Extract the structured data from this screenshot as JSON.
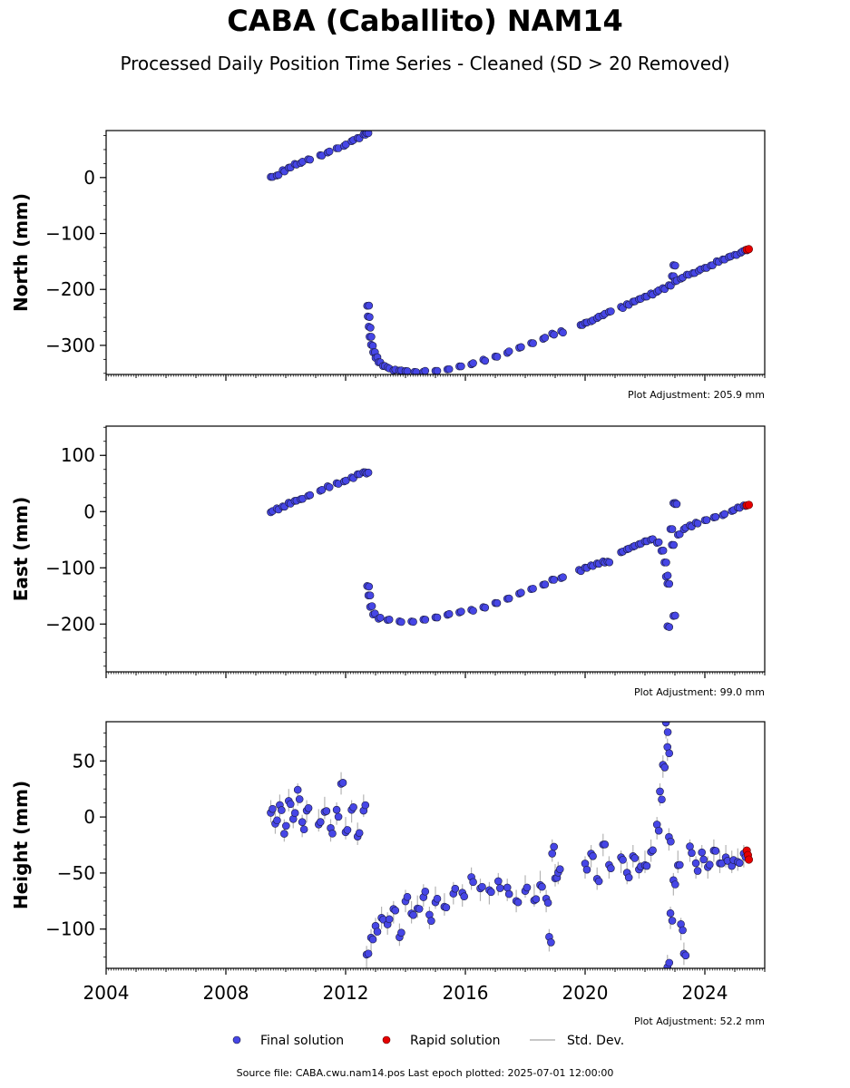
{
  "title": "CABA (Caballito) NAM14",
  "subtitle": "Processed Daily Position Time Series - Cleaned (SD > 20 Removed)",
  "footer": "Source file: CABA.cwu.nam14.pos  Last epoch plotted: 2025-07-01 12:00:00",
  "legend": {
    "final": "Final solution",
    "rapid": "Rapid solution",
    "sd": "Std. Dev."
  },
  "colors": {
    "final": "#4646e6",
    "rapid": "#e60000",
    "sd": "#b4b4b4",
    "edge": "#1a1a3a"
  },
  "chart_data": [
    {
      "type": "scatter",
      "ylabel": "North (mm)",
      "adjustment": "Plot Adjustment: 205.9 mm",
      "xlim": [
        2004,
        2026
      ],
      "ylim": [
        -352,
        84
      ],
      "yticks": [
        0,
        -100,
        -200,
        -300
      ],
      "final_series": [
        [
          2009.5,
          0
        ],
        [
          2009.7,
          5
        ],
        [
          2009.9,
          12
        ],
        [
          2010.1,
          18
        ],
        [
          2010.3,
          24
        ],
        [
          2010.5,
          27
        ],
        [
          2010.75,
          33
        ],
        [
          2011.15,
          40
        ],
        [
          2011.4,
          46
        ],
        [
          2011.7,
          53
        ],
        [
          2011.95,
          58
        ],
        [
          2012.2,
          66
        ],
        [
          2012.4,
          71
        ],
        [
          2012.6,
          77
        ],
        [
          2012.7,
          79
        ],
        [
          2012.72,
          -228
        ],
        [
          2012.74,
          -248
        ],
        [
          2012.77,
          -268
        ],
        [
          2012.8,
          -285
        ],
        [
          2012.85,
          -300
        ],
        [
          2012.92,
          -312
        ],
        [
          2013.0,
          -322
        ],
        [
          2013.1,
          -330
        ],
        [
          2013.25,
          -336
        ],
        [
          2013.4,
          -340
        ],
        [
          2013.6,
          -344
        ],
        [
          2013.8,
          -346
        ],
        [
          2014.0,
          -347
        ],
        [
          2014.3,
          -348
        ],
        [
          2014.6,
          -347
        ],
        [
          2015.0,
          -345
        ],
        [
          2015.4,
          -342
        ],
        [
          2015.8,
          -338
        ],
        [
          2016.2,
          -333
        ],
        [
          2016.6,
          -327
        ],
        [
          2017.0,
          -320
        ],
        [
          2017.4,
          -312
        ],
        [
          2017.8,
          -304
        ],
        [
          2018.2,
          -296
        ],
        [
          2018.6,
          -287
        ],
        [
          2018.9,
          -280
        ],
        [
          2019.2,
          -276
        ],
        [
          2019.85,
          -264
        ],
        [
          2020.0,
          -260
        ],
        [
          2020.2,
          -256
        ],
        [
          2020.4,
          -250
        ],
        [
          2020.6,
          -245
        ],
        [
          2020.8,
          -240
        ],
        [
          2021.2,
          -232
        ],
        [
          2021.4,
          -226
        ],
        [
          2021.6,
          -221
        ],
        [
          2021.8,
          -216
        ],
        [
          2022.0,
          -212
        ],
        [
          2022.2,
          -208
        ],
        [
          2022.4,
          -203
        ],
        [
          2022.6,
          -198
        ],
        [
          2022.8,
          -192
        ],
        [
          2022.9,
          -176
        ],
        [
          2022.95,
          -158
        ],
        [
          2023.0,
          -185
        ],
        [
          2023.2,
          -180
        ],
        [
          2023.4,
          -174
        ],
        [
          2023.6,
          -170
        ],
        [
          2023.8,
          -165
        ],
        [
          2024.0,
          -160
        ],
        [
          2024.2,
          -156
        ],
        [
          2024.4,
          -151
        ],
        [
          2024.6,
          -146
        ],
        [
          2024.8,
          -142
        ],
        [
          2025.0,
          -138
        ],
        [
          2025.2,
          -133
        ],
        [
          2025.35,
          -130
        ]
      ],
      "rapid_series": [
        [
          2025.4,
          -129
        ],
        [
          2025.47,
          -128
        ]
      ]
    },
    {
      "type": "scatter",
      "ylabel": "East (mm)",
      "adjustment": "Plot Adjustment: 99.0 mm",
      "xlim": [
        2004,
        2026
      ],
      "ylim": [
        -285,
        152
      ],
      "yticks": [
        100,
        0,
        -100,
        -200
      ],
      "final_series": [
        [
          2009.5,
          0
        ],
        [
          2009.7,
          5
        ],
        [
          2009.9,
          10
        ],
        [
          2010.1,
          15
        ],
        [
          2010.3,
          19
        ],
        [
          2010.5,
          23
        ],
        [
          2010.75,
          29
        ],
        [
          2011.15,
          38
        ],
        [
          2011.4,
          44
        ],
        [
          2011.7,
          50
        ],
        [
          2011.95,
          55
        ],
        [
          2012.2,
          61
        ],
        [
          2012.4,
          66
        ],
        [
          2012.6,
          70
        ],
        [
          2012.7,
          68
        ],
        [
          2012.72,
          -132
        ],
        [
          2012.76,
          -150
        ],
        [
          2012.82,
          -168
        ],
        [
          2012.92,
          -182
        ],
        [
          2013.1,
          -190
        ],
        [
          2013.4,
          -193
        ],
        [
          2013.8,
          -195
        ],
        [
          2014.2,
          -195
        ],
        [
          2014.6,
          -192
        ],
        [
          2015.0,
          -188
        ],
        [
          2015.4,
          -183
        ],
        [
          2015.8,
          -178
        ],
        [
          2016.2,
          -175
        ],
        [
          2016.6,
          -170
        ],
        [
          2017.0,
          -163
        ],
        [
          2017.4,
          -154
        ],
        [
          2017.8,
          -145
        ],
        [
          2018.2,
          -138
        ],
        [
          2018.6,
          -130
        ],
        [
          2018.9,
          -122
        ],
        [
          2019.2,
          -117
        ],
        [
          2019.8,
          -105
        ],
        [
          2020.0,
          -100
        ],
        [
          2020.2,
          -96
        ],
        [
          2020.4,
          -93
        ],
        [
          2020.6,
          -90
        ],
        [
          2020.75,
          -89
        ],
        [
          2021.2,
          -72
        ],
        [
          2021.4,
          -66
        ],
        [
          2021.6,
          -61
        ],
        [
          2021.8,
          -57
        ],
        [
          2022.0,
          -53
        ],
        [
          2022.2,
          -50
        ],
        [
          2022.4,
          -55
        ],
        [
          2022.55,
          -70
        ],
        [
          2022.65,
          -90
        ],
        [
          2022.7,
          -115
        ],
        [
          2022.75,
          -128
        ],
        [
          2022.75,
          -205
        ],
        [
          2022.95,
          -185
        ],
        [
          2022.95,
          15
        ],
        [
          2023.0,
          14
        ],
        [
          2022.9,
          -60
        ],
        [
          2022.85,
          -30
        ],
        [
          2023.1,
          -40
        ],
        [
          2023.3,
          -30
        ],
        [
          2023.5,
          -25
        ],
        [
          2023.7,
          -20
        ],
        [
          2024.0,
          -15
        ],
        [
          2024.3,
          -10
        ],
        [
          2024.6,
          -5
        ],
        [
          2024.9,
          2
        ],
        [
          2025.1,
          7
        ],
        [
          2025.3,
          10
        ]
      ],
      "rapid_series": [
        [
          2025.4,
          11
        ],
        [
          2025.47,
          12
        ]
      ]
    },
    {
      "type": "scatter",
      "ylabel": "Height (mm)",
      "adjustment": "Plot Adjustment: 52.2 mm",
      "xlim": [
        2004,
        2026
      ],
      "ylim": [
        -135,
        85
      ],
      "yticks": [
        50,
        0,
        -50,
        -100
      ],
      "xticks": [
        "2004",
        "2008",
        "2012",
        "2016",
        "2020",
        "2024"
      ],
      "final_series": [
        [
          2009.5,
          5
        ],
        [
          2009.65,
          -5
        ],
        [
          2009.8,
          10
        ],
        [
          2009.95,
          -12
        ],
        [
          2010.1,
          15
        ],
        [
          2010.25,
          0
        ],
        [
          2010.4,
          20
        ],
        [
          2010.55,
          -8
        ],
        [
          2010.7,
          5
        ],
        [
          2011.1,
          -3
        ],
        [
          2011.3,
          8
        ],
        [
          2011.5,
          -12
        ],
        [
          2011.7,
          3
        ],
        [
          2011.85,
          30
        ],
        [
          2012.0,
          -10
        ],
        [
          2012.2,
          5
        ],
        [
          2012.4,
          -15
        ],
        [
          2012.6,
          10
        ],
        [
          2012.7,
          -125
        ],
        [
          2012.85,
          -110
        ],
        [
          2013.0,
          -100
        ],
        [
          2013.2,
          -90
        ],
        [
          2013.4,
          -95
        ],
        [
          2013.6,
          -85
        ],
        [
          2013.8,
          -105
        ],
        [
          2014.0,
          -75
        ],
        [
          2014.2,
          -85
        ],
        [
          2014.4,
          -80
        ],
        [
          2014.6,
          -70
        ],
        [
          2014.8,
          -90
        ],
        [
          2015.0,
          -72
        ],
        [
          2015.3,
          -78
        ],
        [
          2015.6,
          -68
        ],
        [
          2015.9,
          -70
        ],
        [
          2016.2,
          -55
        ],
        [
          2016.5,
          -65
        ],
        [
          2016.8,
          -68
        ],
        [
          2017.1,
          -60
        ],
        [
          2017.4,
          -65
        ],
        [
          2017.7,
          -75
        ],
        [
          2018.0,
          -62
        ],
        [
          2018.3,
          -70
        ],
        [
          2018.5,
          -58
        ],
        [
          2018.7,
          -75
        ],
        [
          2018.8,
          -110
        ],
        [
          2018.9,
          -30
        ],
        [
          2019.0,
          -52
        ],
        [
          2019.1,
          -50
        ],
        [
          2020.0,
          -45
        ],
        [
          2020.2,
          -35
        ],
        [
          2020.4,
          -55
        ],
        [
          2020.6,
          -25
        ],
        [
          2020.8,
          -45
        ],
        [
          2021.2,
          -40
        ],
        [
          2021.4,
          -50
        ],
        [
          2021.6,
          -35
        ],
        [
          2021.8,
          -45
        ],
        [
          2022.0,
          -40
        ],
        [
          2022.2,
          -30
        ],
        [
          2022.4,
          -10
        ],
        [
          2022.5,
          20
        ],
        [
          2022.6,
          45
        ],
        [
          2022.7,
          80
        ],
        [
          2022.75,
          60
        ],
        [
          2022.8,
          -20
        ],
        [
          2022.85,
          -90
        ],
        [
          2022.75,
          -133
        ],
        [
          2022.95,
          -60
        ],
        [
          2023.1,
          -40
        ],
        [
          2023.2,
          -100
        ],
        [
          2023.3,
          -122
        ],
        [
          2023.5,
          -30
        ],
        [
          2023.7,
          -45
        ],
        [
          2023.9,
          -35
        ],
        [
          2024.1,
          -45
        ],
        [
          2024.3,
          -30
        ],
        [
          2024.5,
          -40
        ],
        [
          2024.7,
          -35
        ],
        [
          2024.9,
          -40
        ],
        [
          2025.1,
          -38
        ],
        [
          2025.3,
          -35
        ]
      ],
      "rapid_series": [
        [
          2025.4,
          -30
        ],
        [
          2025.44,
          -34
        ],
        [
          2025.47,
          -38
        ]
      ]
    }
  ]
}
